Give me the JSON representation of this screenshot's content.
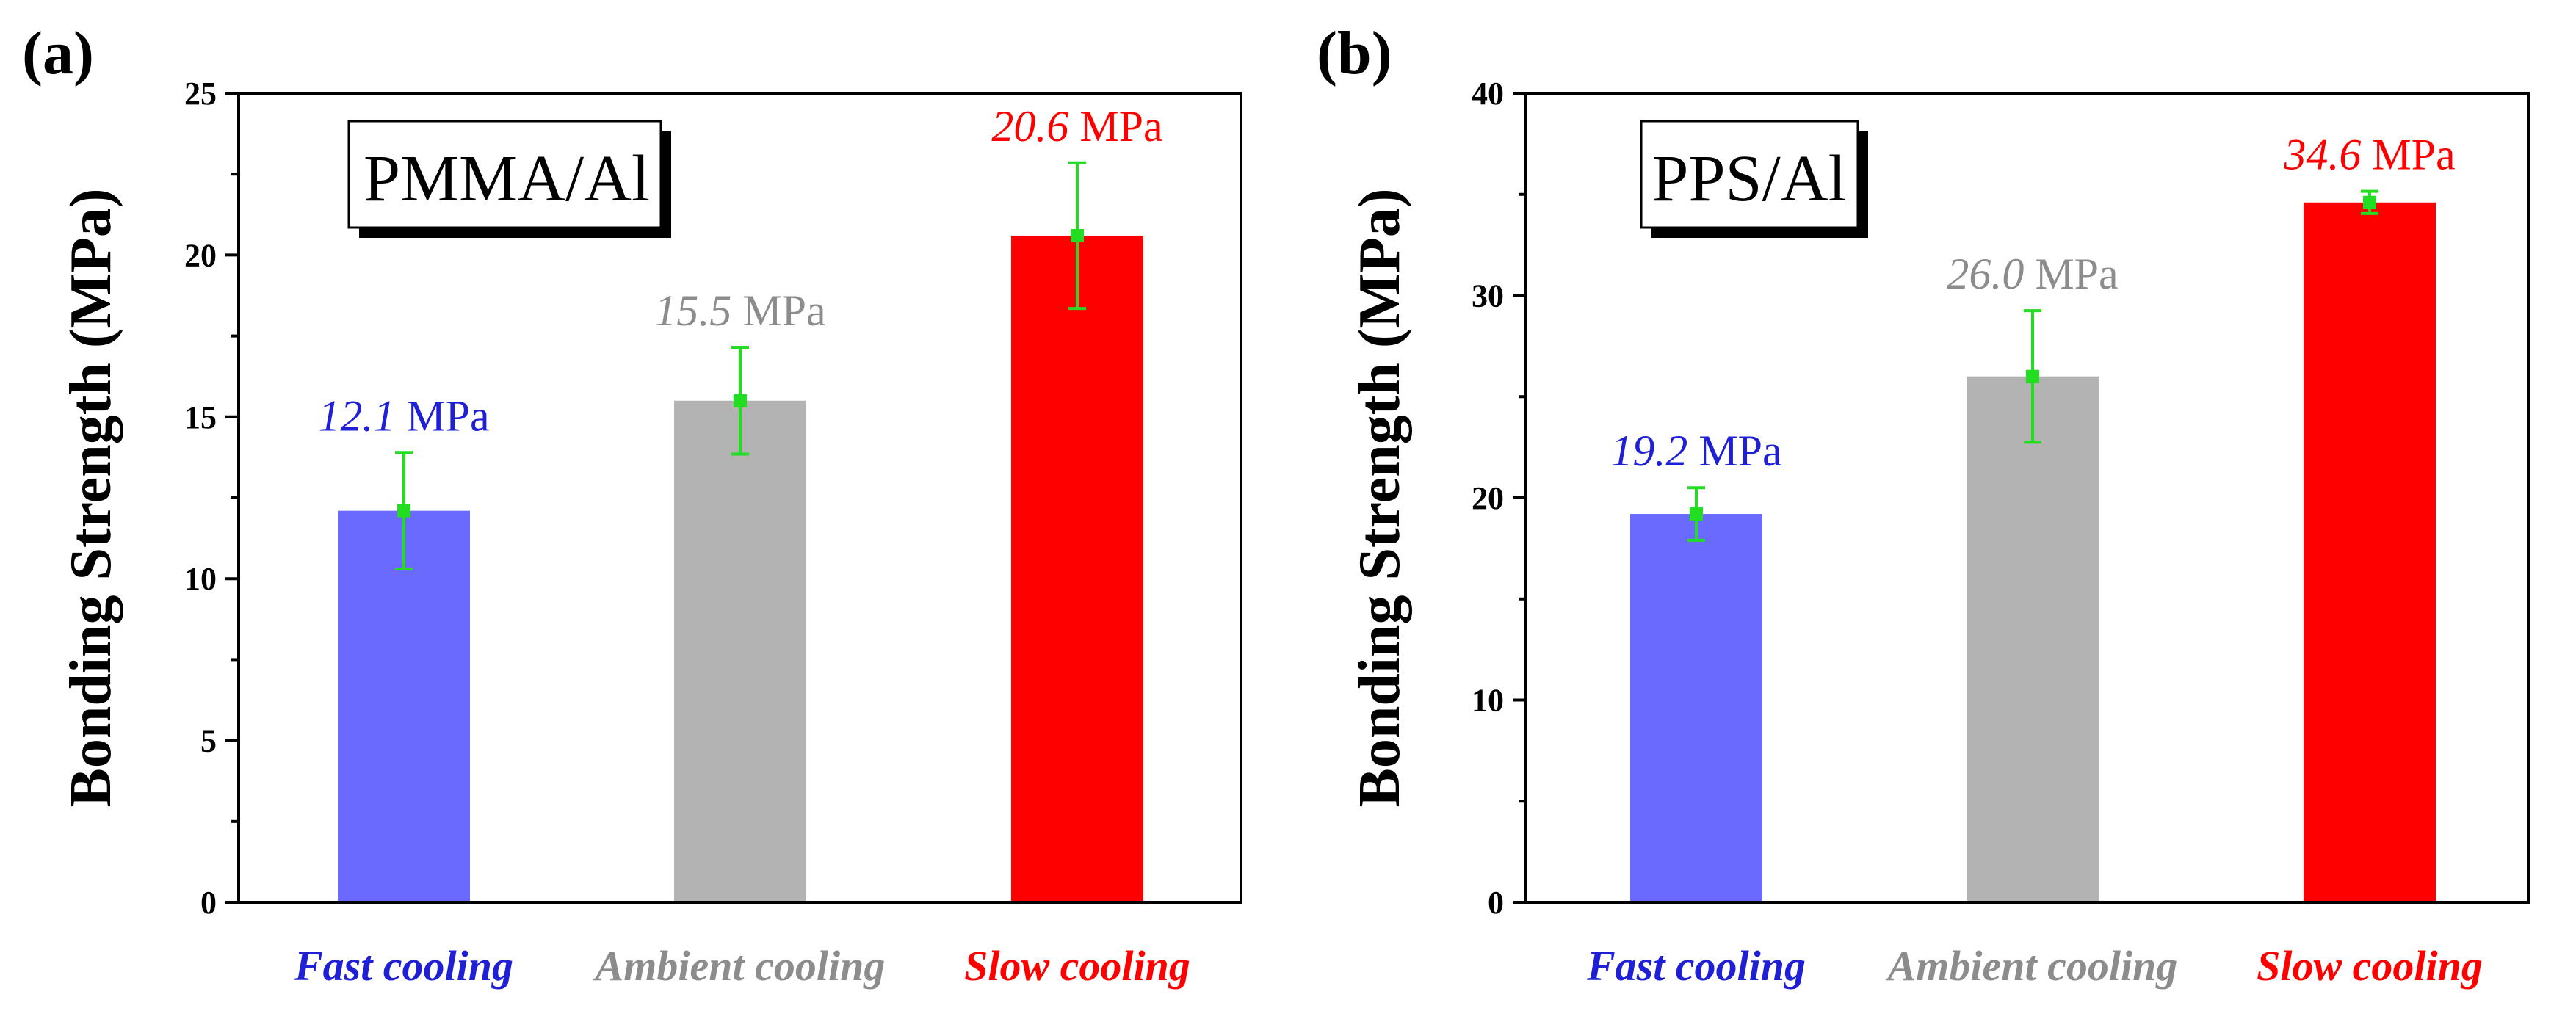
{
  "chart_data": [
    {
      "type": "bar",
      "panel_label": "(a)",
      "inset_label": "PMMA/Al",
      "ylabel": "Bonding Strength (MPa)",
      "xlabel": "",
      "ylim": [
        0,
        25
      ],
      "yticks": [
        0,
        5,
        10,
        15,
        20,
        25
      ],
      "y_minor_step": 2.5,
      "categories": [
        "Fast cooling",
        "Ambient cooling",
        "Slow cooling"
      ],
      "colors": [
        "#6a6aff",
        "#b3b3b3",
        "#ff0000"
      ],
      "label_colors": [
        "#1f1fd6",
        "#8c8c8c",
        "#ff0000"
      ],
      "values": [
        12.1,
        15.5,
        20.6
      ],
      "errors": [
        1.8,
        1.65,
        2.25
      ],
      "value_numbers": [
        "12.1",
        "15.5",
        "20.6"
      ],
      "unit": "MPa",
      "error_color": "#22dd22"
    },
    {
      "type": "bar",
      "panel_label": "(b)",
      "inset_label": "PPS/Al",
      "ylabel": "Bonding Strength (MPa)",
      "xlabel": "",
      "ylim": [
        0,
        40
      ],
      "yticks": [
        0,
        10,
        20,
        30,
        40
      ],
      "y_minor_step": 5,
      "categories": [
        "Fast cooling",
        "Ambient cooling",
        "Slow cooling"
      ],
      "colors": [
        "#6a6aff",
        "#b3b3b3",
        "#ff0000"
      ],
      "label_colors": [
        "#1f1fd6",
        "#8c8c8c",
        "#ff0000"
      ],
      "values": [
        19.2,
        26.0,
        34.6
      ],
      "errors": [
        1.3,
        3.25,
        0.55
      ],
      "value_numbers": [
        "19.2",
        "26.0",
        "34.6"
      ],
      "unit": "MPa",
      "error_color": "#22dd22"
    }
  ]
}
